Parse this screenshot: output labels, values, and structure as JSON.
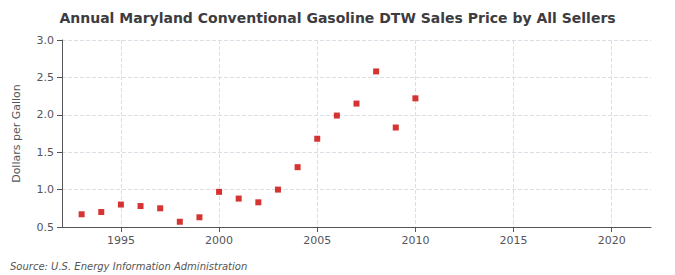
{
  "chart_data": {
    "type": "scatter",
    "title": "Annual Maryland Conventional Gasoline DTW Sales Price by All Sellers",
    "ylabel": "Dollars per Gallon",
    "annotations": [
      "Source: U.S. Energy Information Administration"
    ],
    "x": [
      1993,
      1994,
      1995,
      1996,
      1997,
      1998,
      1999,
      2000,
      2001,
      2002,
      2003,
      2004,
      2005,
      2006,
      2007,
      2008,
      2009,
      2010
    ],
    "values": [
      0.67,
      0.7,
      0.8,
      0.78,
      0.75,
      0.57,
      0.63,
      0.97,
      0.88,
      0.83,
      1.0,
      1.3,
      1.68,
      1.99,
      2.15,
      2.58,
      1.83,
      2.22
    ],
    "color": "#cc0000",
    "marker": "square",
    "xlim": [
      1992,
      2022
    ],
    "ylim": [
      0.5,
      3.0
    ],
    "xticks": [
      1995,
      2000,
      2005,
      2010,
      2015,
      2020
    ],
    "yticks": [
      0.5,
      {
        "value": 1,
        "label": "1.0"
      },
      1.5,
      {
        "value": 2,
        "label": "2.0"
      },
      2.5,
      {
        "value": 3,
        "label": "3.0"
      }
    ],
    "grid": true
  }
}
